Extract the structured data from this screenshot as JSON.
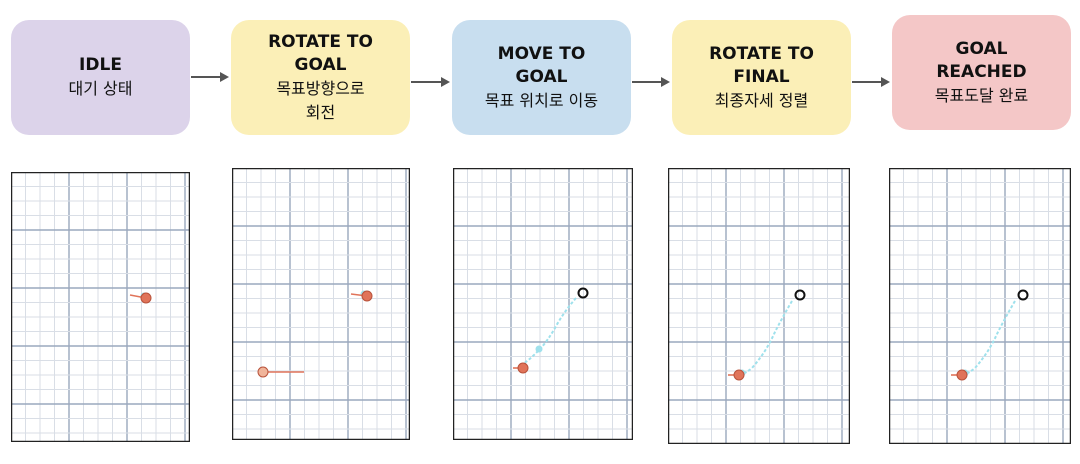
{
  "states": [
    {
      "id": "idle",
      "en": "IDLE",
      "ko": "대기 상태",
      "color": "#dcd3ea"
    },
    {
      "id": "rotate-to-goal",
      "en": "ROTATE  TO\nGOAL",
      "ko": "목표방향으로\n회전",
      "color": "#fbefb7"
    },
    {
      "id": "move-to-goal",
      "en": "MOVE TO\nGOAL",
      "ko": "목표 위치로 이동",
      "color": "#c8deef"
    },
    {
      "id": "rotate-to-final",
      "en": "ROTATE TO\nFINAL",
      "ko": "최종자세 정렬",
      "color": "#fbefb7"
    },
    {
      "id": "goal-reached",
      "en": "GOAL\nREACHED",
      "ko": "목표도달 완료",
      "color": "#f4c7c7"
    }
  ],
  "colors": {
    "grid_major": "#9aa8bd",
    "grid_minor": "#d9dee6",
    "robot": "#e0745a",
    "trail": "#9fe1ec",
    "goal": "#111111",
    "frame": "#222222"
  }
}
